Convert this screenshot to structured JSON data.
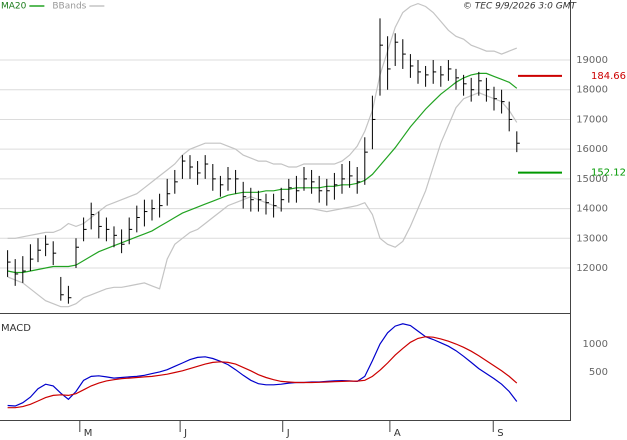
{
  "chart_data": [
    {
      "type": "ohlc",
      "source": "© TEC 9/9/2026 3:0 GMT",
      "legend": "top-left",
      "grid": true,
      "color": "#000000",
      "categories": [
        null,
        null,
        null,
        null,
        null,
        null,
        null,
        null,
        null,
        null,
        null,
        null,
        null,
        null,
        null,
        null,
        null,
        null,
        null,
        null,
        null,
        null,
        null,
        null,
        null,
        null,
        null,
        null,
        null,
        null,
        null,
        null,
        null,
        null,
        null,
        null,
        null,
        null,
        null,
        null,
        null,
        null,
        null,
        null,
        null,
        null,
        null,
        null,
        null,
        null,
        null,
        null,
        null,
        null,
        null,
        null,
        null,
        null,
        null,
        null,
        null,
        null,
        null,
        null,
        null,
        null,
        null,
        null
      ],
      "high": [
        12600,
        12300,
        12400,
        12800,
        13000,
        13100,
        12900,
        11700,
        11400,
        13000,
        13700,
        14200,
        13900,
        13700,
        13400,
        13300,
        13700,
        14100,
        14300,
        14300,
        14500,
        15000,
        15300,
        15800,
        15800,
        15600,
        15800,
        15500,
        15100,
        15400,
        15300,
        14900,
        14700,
        14600,
        14500,
        14500,
        14700,
        15000,
        15100,
        15400,
        15300,
        15100,
        15000,
        15200,
        15500,
        15600,
        15400,
        16400,
        17800,
        20400,
        19800,
        19900,
        19700,
        19200,
        19000,
        18800,
        19000,
        18800,
        19000,
        18700,
        18500,
        18400,
        18600,
        18400,
        18100,
        18000,
        17600,
        16600
      ],
      "low": [
        11700,
        11400,
        11500,
        11900,
        12200,
        12400,
        12100,
        10900,
        10800,
        12000,
        12900,
        13300,
        13000,
        12900,
        12700,
        12500,
        12800,
        13200,
        13400,
        13600,
        13700,
        14100,
        14500,
        15000,
        15000,
        14800,
        15000,
        14600,
        14400,
        14600,
        14500,
        14000,
        13900,
        13900,
        13800,
        13700,
        13900,
        14200,
        14200,
        14600,
        14500,
        14200,
        14100,
        14300,
        14500,
        14700,
        14500,
        14800,
        16000,
        17800,
        18000,
        18800,
        18700,
        18400,
        18200,
        18100,
        18200,
        18100,
        18300,
        18000,
        17800,
        17600,
        17800,
        17600,
        17300,
        17200,
        16600,
        15900
      ],
      "close": [
        12200,
        11800,
        11900,
        12300,
        12600,
        12800,
        12500,
        11100,
        11000,
        12700,
        13300,
        13800,
        13400,
        13300,
        13100,
        12800,
        13300,
        13700,
        13900,
        14000,
        14100,
        14500,
        14900,
        15600,
        15400,
        15200,
        15500,
        15000,
        14800,
        15000,
        15000,
        14400,
        14300,
        14300,
        14200,
        14100,
        14300,
        14700,
        14600,
        15000,
        14900,
        14600,
        14600,
        14800,
        15000,
        15100,
        14900,
        15900,
        17000,
        19500,
        18700,
        19600,
        19200,
        18800,
        18600,
        18500,
        18600,
        18500,
        18700,
        18400,
        18200,
        18000,
        18300,
        18000,
        17700,
        17600,
        17000,
        16200
      ],
      "series": [
        {
          "name": "MA20",
          "color": "#22a322",
          "values": [
            11900,
            11850,
            11850,
            11900,
            11950,
            12000,
            12050,
            12050,
            12050,
            12100,
            12250,
            12400,
            12550,
            12650,
            12750,
            12850,
            12950,
            13050,
            13150,
            13250,
            13400,
            13550,
            13700,
            13850,
            13950,
            14050,
            14150,
            14250,
            14350,
            14450,
            14500,
            14550,
            14550,
            14550,
            14600,
            14600,
            14650,
            14650,
            14700,
            14700,
            14700,
            14700,
            14750,
            14750,
            14800,
            14800,
            14850,
            14950,
            15150,
            15450,
            15750,
            16050,
            16400,
            16750,
            17050,
            17350,
            17600,
            17850,
            18050,
            18250,
            18400,
            18500,
            18550,
            18550,
            18450,
            18350,
            18250,
            18050
          ]
        },
        {
          "name": "BBands",
          "color": "#c4c4c4",
          "upper": [
            13000,
            13000,
            13050,
            13100,
            13150,
            13200,
            13200,
            13300,
            13500,
            13400,
            13500,
            13700,
            13900,
            14100,
            14200,
            14300,
            14400,
            14500,
            14700,
            14900,
            15100,
            15300,
            15500,
            15800,
            16000,
            16100,
            16200,
            16200,
            16200,
            16100,
            16000,
            15800,
            15700,
            15600,
            15600,
            15500,
            15500,
            15400,
            15400,
            15500,
            15500,
            15500,
            15500,
            15500,
            15600,
            15800,
            16100,
            16600,
            17300,
            18500,
            19300,
            20100,
            20600,
            20800,
            20900,
            20800,
            20600,
            20300,
            20000,
            19800,
            19700,
            19500,
            19400,
            19300,
            19300,
            19200,
            19300,
            19400
          ],
          "lower": [
            11700,
            11600,
            11500,
            11300,
            11100,
            10900,
            10800,
            10700,
            10700,
            10800,
            11000,
            11100,
            11200,
            11300,
            11350,
            11350,
            11400,
            11450,
            11500,
            11400,
            11300,
            12300,
            12800,
            13000,
            13200,
            13300,
            13500,
            13700,
            13900,
            14100,
            14200,
            14300,
            14400,
            14300,
            14200,
            14100,
            14000,
            14000,
            14000,
            14000,
            14000,
            13950,
            13900,
            13950,
            14000,
            14050,
            14100,
            14200,
            13800,
            13000,
            12800,
            12700,
            12900,
            13400,
            14000,
            14600,
            15400,
            16200,
            16800,
            17400,
            17700,
            17800,
            17900,
            17800,
            17700,
            17600,
            17300,
            16900
          ]
        }
      ],
      "levels": [
        {
          "value": 18466,
          "label": "184.66",
          "color": "#cc0000"
        },
        {
          "value": 15212,
          "label": "152.12",
          "color": "#009900"
        }
      ],
      "xlim": [
        -1,
        74
      ],
      "ylim": [
        10520,
        21020
      ],
      "yticks": [
        12000,
        13000,
        14000,
        15000,
        16000,
        17000,
        18000,
        19000
      ]
    },
    {
      "type": "line",
      "title": "MACD",
      "grid": false,
      "series": [
        {
          "color": "#0000cc",
          "values": [
            -100,
            -110,
            -50,
            50,
            200,
            280,
            250,
            120,
            10,
            150,
            350,
            420,
            430,
            410,
            390,
            400,
            410,
            420,
            440,
            470,
            500,
            540,
            600,
            660,
            720,
            760,
            770,
            740,
            690,
            630,
            540,
            440,
            350,
            290,
            270,
            270,
            280,
            300,
            310,
            310,
            320,
            320,
            330,
            340,
            345,
            340,
            330,
            420,
            700,
            1000,
            1200,
            1320,
            1360,
            1330,
            1230,
            1130,
            1080,
            1020,
            960,
            880,
            780,
            670,
            560,
            470,
            380,
            280,
            150,
            -30
          ]
        },
        {
          "color": "#cc0000",
          "values": [
            -140,
            -140,
            -120,
            -80,
            -20,
            40,
            80,
            90,
            80,
            110,
            180,
            250,
            300,
            340,
            360,
            380,
            390,
            400,
            410,
            420,
            440,
            460,
            490,
            520,
            560,
            600,
            640,
            670,
            680,
            670,
            640,
            580,
            520,
            450,
            400,
            360,
            330,
            320,
            310,
            310,
            310,
            315,
            320,
            325,
            330,
            335,
            335,
            350,
            420,
            530,
            660,
            800,
            920,
            1030,
            1100,
            1130,
            1120,
            1090,
            1050,
            1000,
            940,
            870,
            790,
            700,
            610,
            520,
            420,
            300
          ]
        }
      ],
      "xlim": [
        -1,
        74
      ],
      "ylim": [
        -360,
        1500
      ],
      "yticks": [
        500,
        1000
      ],
      "xticks": [
        {
          "value": 9.5,
          "label": "M"
        },
        {
          "value": 22.7,
          "label": "J"
        },
        {
          "value": 36.2,
          "label": "J"
        },
        {
          "value": 50.3,
          "label": "A"
        },
        {
          "value": 63.9,
          "label": "S"
        }
      ]
    }
  ]
}
